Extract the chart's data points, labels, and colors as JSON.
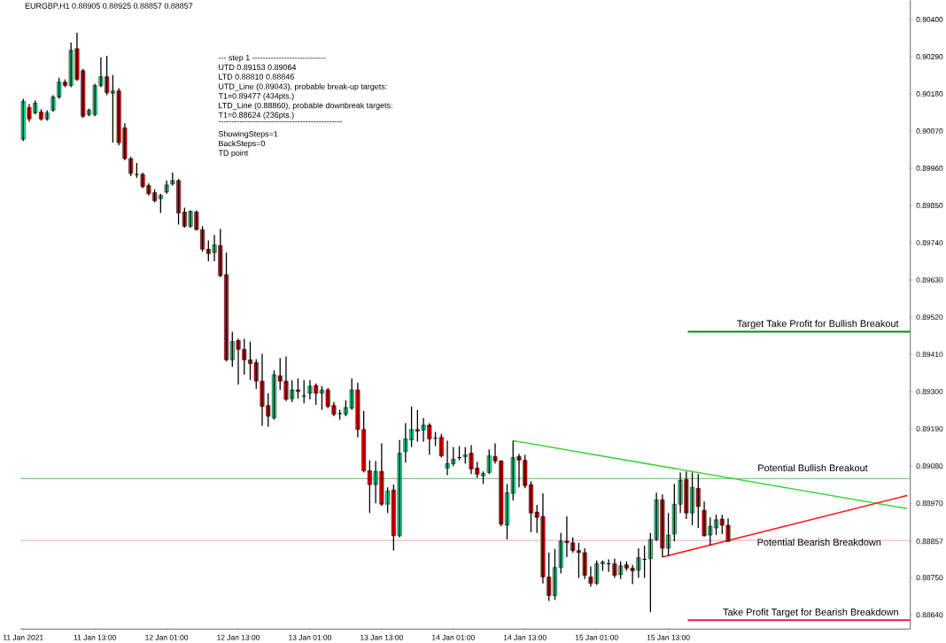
{
  "chart_data": {
    "type": "candlestick",
    "title": "EURGBP,H1  0.88905 0.88925 0.88857 0.88857",
    "x": [
      "2021-01-11T01:00",
      "2021-01-11T02:00",
      "2021-01-11T03:00",
      "2021-01-11T04:00",
      "2021-01-11T05:00",
      "2021-01-11T06:00",
      "2021-01-11T07:00",
      "2021-01-11T08:00",
      "2021-01-11T09:00",
      "2021-01-11T10:00",
      "2021-01-11T11:00",
      "2021-01-11T12:00",
      "2021-01-11T13:00",
      "2021-01-11T14:00",
      "2021-01-11T15:00",
      "2021-01-11T16:00",
      "2021-01-11T17:00",
      "2021-01-11T18:00",
      "2021-01-11T19:00",
      "2021-01-11T20:00",
      "2021-01-11T21:00",
      "2021-01-11T22:00",
      "2021-01-11T23:00",
      "2021-01-12T00:00",
      "2021-01-12T01:00",
      "2021-01-12T02:00",
      "2021-01-12T03:00",
      "2021-01-12T04:00",
      "2021-01-12T05:00",
      "2021-01-12T06:00",
      "2021-01-12T07:00",
      "2021-01-12T08:00",
      "2021-01-12T09:00",
      "2021-01-12T10:00",
      "2021-01-12T11:00",
      "2021-01-12T12:00",
      "2021-01-12T13:00",
      "2021-01-12T14:00",
      "2021-01-12T15:00",
      "2021-01-12T16:00",
      "2021-01-12T17:00",
      "2021-01-12T18:00",
      "2021-01-12T19:00",
      "2021-01-12T20:00",
      "2021-01-12T21:00",
      "2021-01-12T22:00",
      "2021-01-12T23:00",
      "2021-01-13T00:00",
      "2021-01-13T01:00",
      "2021-01-13T02:00",
      "2021-01-13T03:00",
      "2021-01-13T04:00",
      "2021-01-13T05:00",
      "2021-01-13T06:00",
      "2021-01-13T07:00",
      "2021-01-13T08:00",
      "2021-01-13T09:00",
      "2021-01-13T10:00",
      "2021-01-13T11:00",
      "2021-01-13T12:00",
      "2021-01-13T13:00",
      "2021-01-13T14:00",
      "2021-01-13T15:00",
      "2021-01-13T16:00",
      "2021-01-13T17:00",
      "2021-01-13T18:00",
      "2021-01-13T19:00",
      "2021-01-13T20:00",
      "2021-01-13T21:00",
      "2021-01-13T22:00",
      "2021-01-13T23:00",
      "2021-01-14T00:00",
      "2021-01-14T01:00",
      "2021-01-14T02:00",
      "2021-01-14T03:00",
      "2021-01-14T04:00",
      "2021-01-14T05:00",
      "2021-01-14T06:00",
      "2021-01-14T07:00",
      "2021-01-14T08:00",
      "2021-01-14T09:00",
      "2021-01-14T10:00",
      "2021-01-14T11:00",
      "2021-01-14T12:00",
      "2021-01-14T13:00",
      "2021-01-14T14:00",
      "2021-01-14T15:00",
      "2021-01-14T16:00",
      "2021-01-14T17:00",
      "2021-01-14T18:00",
      "2021-01-14T19:00",
      "2021-01-14T20:00",
      "2021-01-14T21:00",
      "2021-01-14T22:00",
      "2021-01-14T23:00",
      "2021-01-15T00:00",
      "2021-01-15T01:00",
      "2021-01-15T02:00",
      "2021-01-15T03:00",
      "2021-01-15T04:00",
      "2021-01-15T05:00",
      "2021-01-15T06:00",
      "2021-01-15T07:00",
      "2021-01-15T08:00",
      "2021-01-15T09:00",
      "2021-01-15T10:00",
      "2021-01-15T11:00",
      "2021-01-15T12:00",
      "2021-01-15T13:00",
      "2021-01-15T14:00",
      "2021-01-15T15:00",
      "2021-01-15T16:00",
      "2021-01-15T17:00",
      "2021-01-15T18:00",
      "2021-01-15T19:00",
      "2021-01-15T20:00",
      "2021-01-15T21:00",
      "2021-01-15T22:00",
      "2021-01-15T23:00"
    ],
    "ohlc": [
      [
        0.90046,
        0.90166,
        0.90041,
        0.90158
      ],
      [
        0.9014,
        0.9015,
        0.90098,
        0.90106
      ],
      [
        0.90124,
        0.90161,
        0.90119,
        0.90153
      ],
      [
        0.90127,
        0.90135,
        0.90101,
        0.90106
      ],
      [
        0.90106,
        0.90132,
        0.90101,
        0.90124
      ],
      [
        0.90132,
        0.90176,
        0.90127,
        0.90171
      ],
      [
        0.90171,
        0.90228,
        0.90166,
        0.90215
      ],
      [
        0.90215,
        0.90223,
        0.902,
        0.90205
      ],
      [
        0.90205,
        0.90332,
        0.902,
        0.90309
      ],
      [
        0.90314,
        0.90361,
        0.90218,
        0.90223
      ],
      [
        0.90249,
        0.90254,
        0.90109,
        0.90114
      ],
      [
        0.90119,
        0.90137,
        0.90114,
        0.90132
      ],
      [
        0.90119,
        0.9021,
        0.90114,
        0.90205
      ],
      [
        0.90205,
        0.90288,
        0.902,
        0.90231
      ],
      [
        0.90231,
        0.90293,
        0.90176,
        0.90184
      ],
      [
        0.90182,
        0.90236,
        0.90036,
        0.90189
      ],
      [
        0.90189,
        0.90197,
        0.90028,
        0.90036
      ],
      [
        0.9008,
        0.90093,
        0.89984,
        0.89989
      ],
      [
        0.89989,
        0.89994,
        0.89937,
        0.89945
      ],
      [
        0.89942,
        0.89976,
        0.89932,
        0.89942
      ],
      [
        0.89942,
        0.89948,
        0.89901,
        0.89906
      ],
      [
        0.89909,
        0.89916,
        0.8988,
        0.89885
      ],
      [
        0.89888,
        0.89898,
        0.89859,
        0.89864
      ],
      [
        0.8987,
        0.89885,
        0.89828,
        0.8988
      ],
      [
        0.8989,
        0.89924,
        0.89885,
        0.89911
      ],
      [
        0.89914,
        0.89948,
        0.89909,
        0.89924
      ],
      [
        0.89924,
        0.89929,
        0.89794,
        0.89828
      ],
      [
        0.89831,
        0.89844,
        0.89784,
        0.89789
      ],
      [
        0.89789,
        0.89836,
        0.89784,
        0.89833
      ],
      [
        0.89831,
        0.89836,
        0.89776,
        0.89779
      ],
      [
        0.89779,
        0.89789,
        0.89714,
        0.89721
      ],
      [
        0.89721,
        0.89747,
        0.89685,
        0.89708
      ],
      [
        0.89711,
        0.89763,
        0.89685,
        0.89734
      ],
      [
        0.89732,
        0.89781,
        0.89638,
        0.89643
      ],
      [
        0.89646,
        0.89711,
        0.89389,
        0.89394
      ],
      [
        0.89394,
        0.89477,
        0.89373,
        0.89448
      ],
      [
        0.89451,
        0.89456,
        0.89321,
        0.89425
      ],
      [
        0.89425,
        0.89456,
        0.8935,
        0.89394
      ],
      [
        0.89394,
        0.89448,
        0.89334,
        0.89383
      ],
      [
        0.89386,
        0.89396,
        0.89308,
        0.89331
      ],
      [
        0.89331,
        0.89412,
        0.89199,
        0.89256
      ],
      [
        0.89259,
        0.89295,
        0.89196,
        0.89227
      ],
      [
        0.89222,
        0.89363,
        0.89217,
        0.8935
      ],
      [
        0.89347,
        0.89399,
        0.89305,
        0.89331
      ],
      [
        0.89331,
        0.89404,
        0.89272,
        0.89277
      ],
      [
        0.89279,
        0.89334,
        0.89269,
        0.89305
      ],
      [
        0.89305,
        0.89339,
        0.89279,
        0.893
      ],
      [
        0.89287,
        0.89334,
        0.89266,
        0.89287
      ],
      [
        0.89295,
        0.89334,
        0.89277,
        0.89316
      ],
      [
        0.89318,
        0.89324,
        0.89261,
        0.89295
      ],
      [
        0.89295,
        0.89316,
        0.89246,
        0.89305
      ],
      [
        0.89305,
        0.89311,
        0.89251,
        0.89256
      ],
      [
        0.89259,
        0.89269,
        0.89227,
        0.89233
      ],
      [
        0.89235,
        0.89246,
        0.89217,
        0.89235
      ],
      [
        0.89233,
        0.89274,
        0.89227,
        0.89253
      ],
      [
        0.89251,
        0.89339,
        0.89246,
        0.89305
      ],
      [
        0.89305,
        0.89326,
        0.89165,
        0.89188
      ],
      [
        0.89188,
        0.89243,
        0.89061,
        0.89066
      ],
      [
        0.89066,
        0.89097,
        0.88941,
        0.89025
      ],
      [
        0.89025,
        0.89095,
        0.8897,
        0.89064
      ],
      [
        0.89064,
        0.89147,
        0.88962,
        0.88967
      ],
      [
        0.88967,
        0.89017,
        0.88941,
        0.89006
      ],
      [
        0.89009,
        0.89025,
        0.8883,
        0.88874
      ],
      [
        0.88874,
        0.89157,
        0.88869,
        0.89118
      ],
      [
        0.89123,
        0.89207,
        0.8909,
        0.8916
      ],
      [
        0.89157,
        0.89256,
        0.89136,
        0.89188
      ],
      [
        0.89188,
        0.89246,
        0.89152,
        0.89183
      ],
      [
        0.89186,
        0.89222,
        0.89152,
        0.89201
      ],
      [
        0.89201,
        0.89207,
        0.89113,
        0.8916
      ],
      [
        0.89162,
        0.89181,
        0.89139,
        0.89162
      ],
      [
        0.89165,
        0.89175,
        0.89105,
        0.8911
      ],
      [
        0.89074,
        0.89155,
        0.89053,
        0.89087
      ],
      [
        0.89087,
        0.89136,
        0.89079,
        0.891
      ],
      [
        0.89105,
        0.89139,
        0.89097,
        0.89105
      ],
      [
        0.89108,
        0.89136,
        0.89087,
        0.89113
      ],
      [
        0.89118,
        0.89142,
        0.89056,
        0.89071
      ],
      [
        0.89074,
        0.89092,
        0.89045,
        0.89056
      ],
      [
        0.89051,
        0.89064,
        0.89027,
        0.89058
      ],
      [
        0.89061,
        0.89129,
        0.89056,
        0.8911
      ],
      [
        0.89108,
        0.89147,
        0.89087,
        0.89095
      ],
      [
        0.89095,
        0.89097,
        0.88902,
        0.88908
      ],
      [
        0.88905,
        0.89027,
        0.88863,
        0.89001
      ],
      [
        0.88999,
        0.89155,
        0.88978,
        0.89105
      ],
      [
        0.89108,
        0.89116,
        0.89017,
        0.89097
      ],
      [
        0.89097,
        0.89113,
        0.89014,
        0.89022
      ],
      [
        0.89025,
        0.89035,
        0.88884,
        0.88941
      ],
      [
        0.88944,
        0.88965,
        0.88882,
        0.88928
      ],
      [
        0.88931,
        0.88999,
        0.88733,
        0.88752
      ],
      [
        0.88752,
        0.88824,
        0.88681,
        0.88697
      ],
      [
        0.88697,
        0.88835,
        0.88684,
        0.8878
      ],
      [
        0.8878,
        0.88882,
        0.88762,
        0.88858
      ],
      [
        0.88858,
        0.88931,
        0.88811,
        0.88853
      ],
      [
        0.88853,
        0.88869,
        0.88824,
        0.8883
      ],
      [
        0.8883,
        0.88853,
        0.88749,
        0.88824
      ],
      [
        0.88824,
        0.88837,
        0.88746,
        0.88757
      ],
      [
        0.88752,
        0.88783,
        0.88723,
        0.88733
      ],
      [
        0.88733,
        0.88801,
        0.88728,
        0.88791
      ],
      [
        0.88791,
        0.88801,
        0.8877,
        0.88796
      ],
      [
        0.88791,
        0.88804,
        0.88767,
        0.88791
      ],
      [
        0.88791,
        0.88806,
        0.88749,
        0.88757
      ],
      [
        0.88759,
        0.88798,
        0.88746,
        0.88785
      ],
      [
        0.88788,
        0.88798,
        0.8877,
        0.88778
      ],
      [
        0.88778,
        0.88788,
        0.88731,
        0.8877
      ],
      [
        0.88772,
        0.88837,
        0.88749,
        0.88809
      ],
      [
        0.88804,
        0.88845,
        0.88749,
        0.88804
      ],
      [
        0.88806,
        0.88882,
        0.88648,
        0.88863
      ],
      [
        0.88863,
        0.89001,
        0.88858,
        0.8898
      ],
      [
        0.8898,
        0.88996,
        0.88811,
        0.88837
      ],
      [
        0.88837,
        0.88941,
        0.88814,
        0.88876
      ],
      [
        0.88879,
        0.89027,
        0.88858,
        0.88967
      ],
      [
        0.88967,
        0.89061,
        0.88941,
        0.89038
      ],
      [
        0.8904,
        0.89064,
        0.88923,
        0.88941
      ],
      [
        0.88941,
        0.89061,
        0.88905,
        0.89017
      ],
      [
        0.89014,
        0.89056,
        0.88897,
        0.8896
      ],
      [
        0.88949,
        0.88975,
        0.88871,
        0.88874
      ],
      [
        0.88876,
        0.88928,
        0.88845,
        0.88902
      ],
      [
        0.88897,
        0.88936,
        0.88876,
        0.88921
      ],
      [
        0.88923,
        0.88936,
        0.88879,
        0.88905
      ],
      [
        0.88905,
        0.88925,
        0.88857,
        0.88857
      ]
    ],
    "series": [
      {
        "type": "line",
        "name": "Potential Bullish Breakout",
        "color": "#3ed63e",
        "x": [
          "2021-01-14T11:00",
          "2021-01-17T05:00"
        ],
        "values": [
          0.89155,
          0.88954
        ]
      },
      {
        "type": "line",
        "name": "Potential Bearish Breakdown",
        "color": "#ff1a1a",
        "x": [
          "2021-01-15T12:00",
          "2021-01-17T05:00"
        ],
        "values": [
          0.88811,
          0.88993
        ]
      }
    ],
    "xlim": [
      "2021-01-11T00:30",
      "2021-01-17T05:30"
    ],
    "xticks": [
      {
        "value": "2021-01-11T01:00",
        "label": "11 Jan 2021"
      },
      {
        "value": "2021-01-11T13:00",
        "label": "11 Jan 13:00"
      },
      {
        "value": "2021-01-12T01:00",
        "label": "12 Jan 01:00"
      },
      {
        "value": "2021-01-12T13:00",
        "label": "12 Jan 13:00"
      },
      {
        "value": "2021-01-13T01:00",
        "label": "13 Jan 01:00"
      },
      {
        "value": "2021-01-13T13:00",
        "label": "13 Jan 13:00"
      },
      {
        "value": "2021-01-14T01:00",
        "label": "14 Jan 01:00"
      },
      {
        "value": "2021-01-14T13:00",
        "label": "14 Jan 13:00"
      },
      {
        "value": "2021-01-15T01:00",
        "label": "15 Jan 01:00"
      },
      {
        "value": "2021-01-15T13:00",
        "label": "15 Jan 13:00"
      }
    ],
    "ylim": [
      0.88598,
      0.90457
    ],
    "yticks": [
      {
        "value": 0.904,
        "label": "0.90400"
      },
      {
        "value": 0.9029,
        "label": "0.90290"
      },
      {
        "value": 0.9018,
        "label": "0.90180"
      },
      {
        "value": 0.9007,
        "label": "0.90070"
      },
      {
        "value": 0.8996,
        "label": "0.89960"
      },
      {
        "value": 0.8985,
        "label": "0.89850"
      },
      {
        "value": 0.8974,
        "label": "0.89740"
      },
      {
        "value": 0.8963,
        "label": "0.89630"
      },
      {
        "value": 0.8952,
        "label": "0.89520"
      },
      {
        "value": 0.8941,
        "label": "0.89410"
      },
      {
        "value": 0.893,
        "label": "0.89300"
      },
      {
        "value": 0.8919,
        "label": "0.89190"
      },
      {
        "value": 0.8908,
        "label": "0.89080"
      },
      {
        "value": 0.8897,
        "label": "0.88970"
      },
      {
        "value": 0.88857,
        "label": "0.88857"
      },
      {
        "value": 0.8875,
        "label": "0.88750"
      },
      {
        "value": 0.8864,
        "label": "0.88640"
      }
    ],
    "ref_lines": [
      {
        "axis": "y",
        "value": 0.89043,
        "color": "#1a9e1a"
      },
      {
        "axis": "y",
        "value": 0.8886,
        "color": "#e0808f"
      },
      {
        "axis": "y",
        "value": 0.89477,
        "label": "Target Take Profit for Bullish Breakout",
        "color": "#118811"
      },
      {
        "axis": "y",
        "value": 0.88624,
        "label": "Take Profit Target for Bearish Breakdown",
        "color": "#e8174f"
      }
    ],
    "annotations": [
      "---   step 1 ----------------------------",
      "UTD 0.89153  0.89064",
      "LTD  0.88810  0.88846",
      "UTD_Line (0.89043), probable break-up targets:",
      "T1=0.89477 (434pts.)",
      "LTD_Line (0.88860), probable downbreak targets:",
      "T1=0.88624 (236pts.)",
      "-----------------------------------------------",
      "ShowingSteps=1",
      "BackSteps=0",
      "TD point"
    ]
  }
}
